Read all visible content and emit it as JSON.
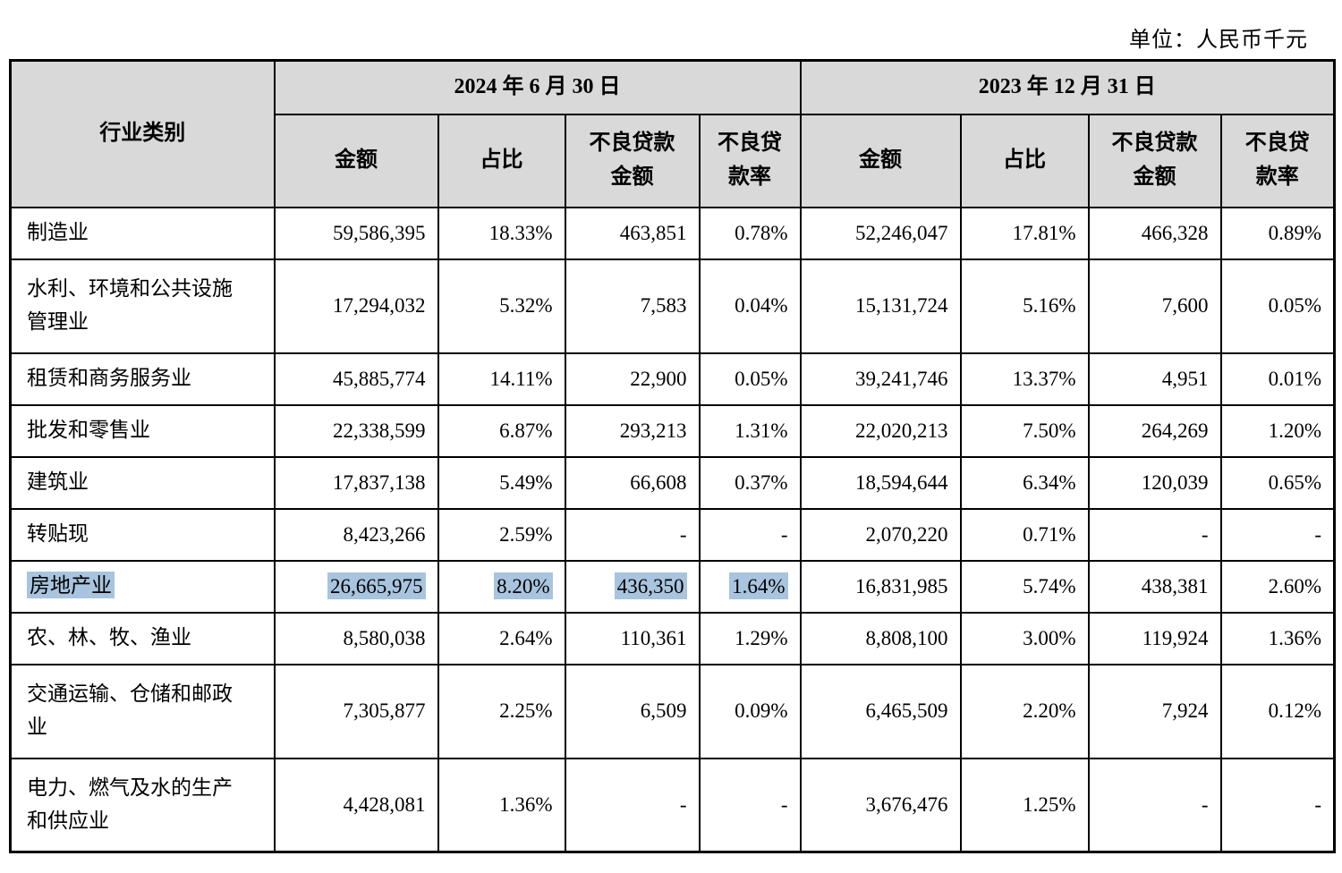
{
  "unit_label": "单位：人民币千元",
  "table": {
    "row_header": "行业类别",
    "col_groups": [
      {
        "label": "2024 年 6 月 30 日",
        "columns": [
          "金额",
          "占比",
          "不良贷款\n金额",
          "不良贷\n款率"
        ]
      },
      {
        "label": "2023 年 12 月 31 日",
        "columns": [
          "金额",
          "占比",
          "不良贷款\n金额",
          "不良贷\n款率"
        ]
      }
    ],
    "rows": [
      {
        "category": "制造业",
        "highlight": false,
        "values": [
          "59,586,395",
          "18.33%",
          "463,851",
          "0.78%",
          "52,246,047",
          "17.81%",
          "466,328",
          "0.89%"
        ]
      },
      {
        "category": "水利、环境和公共设施\n管理业",
        "highlight": false,
        "values": [
          "17,294,032",
          "5.32%",
          "7,583",
          "0.04%",
          "15,131,724",
          "5.16%",
          "7,600",
          "0.05%"
        ]
      },
      {
        "category": "租赁和商务服务业",
        "highlight": false,
        "values": [
          "45,885,774",
          "14.11%",
          "22,900",
          "0.05%",
          "39,241,746",
          "13.37%",
          "4,951",
          "0.01%"
        ]
      },
      {
        "category": "批发和零售业",
        "highlight": false,
        "values": [
          "22,338,599",
          "6.87%",
          "293,213",
          "1.31%",
          "22,020,213",
          "7.50%",
          "264,269",
          "1.20%"
        ]
      },
      {
        "category": "建筑业",
        "highlight": false,
        "values": [
          "17,837,138",
          "5.49%",
          "66,608",
          "0.37%",
          "18,594,644",
          "6.34%",
          "120,039",
          "0.65%"
        ]
      },
      {
        "category": "转贴现",
        "highlight": false,
        "values": [
          "8,423,266",
          "2.59%",
          "-",
          "-",
          "2,070,220",
          "0.71%",
          "-",
          "-"
        ]
      },
      {
        "category": "房地产业",
        "highlight": true,
        "values": [
          "26,665,975",
          "8.20%",
          "436,350",
          "1.64%",
          "16,831,985",
          "5.74%",
          "438,381",
          "2.60%"
        ]
      },
      {
        "category": "农、林、牧、渔业",
        "highlight": false,
        "values": [
          "8,580,038",
          "2.64%",
          "110,361",
          "1.29%",
          "8,808,100",
          "3.00%",
          "119,924",
          "1.36%"
        ]
      },
      {
        "category": "交通运输、仓储和邮政\n业",
        "highlight": false,
        "values": [
          "7,305,877",
          "2.25%",
          "6,509",
          "0.09%",
          "6,465,509",
          "2.20%",
          "7,924",
          "0.12%"
        ]
      },
      {
        "category": "电力、燃气及水的生产\n和供应业",
        "highlight": false,
        "values": [
          "4,428,081",
          "1.36%",
          "-",
          "-",
          "3,676,476",
          "1.25%",
          "-",
          "-"
        ]
      }
    ],
    "colors": {
      "header_bg": "#d9d9d9",
      "highlight": "#a8c4de",
      "border": "#000000"
    }
  }
}
